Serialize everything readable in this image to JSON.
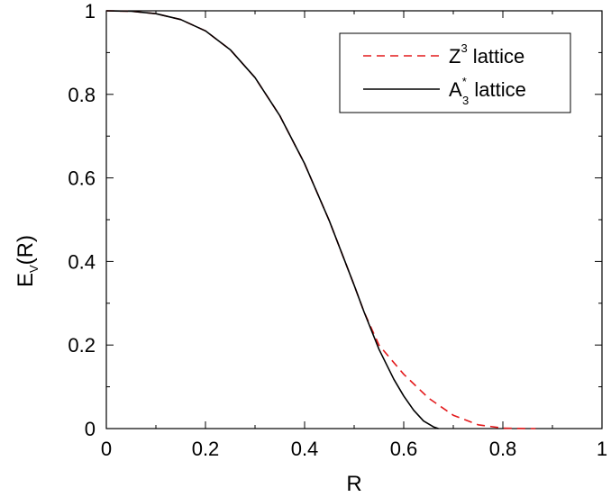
{
  "chart_data": {
    "type": "line",
    "title": "",
    "xlabel": "R",
    "ylabel": {
      "main": "E",
      "sub": "V",
      "suffix": "(R)"
    },
    "xlim": [
      0,
      1
    ],
    "ylim": [
      0,
      1
    ],
    "x_ticks": [
      0,
      0.2,
      0.4,
      0.6,
      0.8,
      1
    ],
    "y_ticks": [
      0,
      0.2,
      0.4,
      0.6,
      0.8,
      1
    ],
    "x_tick_labels": [
      "0",
      "0.2",
      "0.4",
      "0.6",
      "0.8",
      "1"
    ],
    "y_tick_labels": [
      "0",
      "0.2",
      "0.4",
      "0.6",
      "0.8",
      "1"
    ],
    "grid": false,
    "legend_position": "top-right",
    "series": [
      {
        "name": "Z3 lattice",
        "legend": {
          "base": "Z",
          "sup": "3",
          "sub": "",
          "suffix": " lattice"
        },
        "color": "#e31a1c",
        "style": "dashed",
        "x": [
          0,
          0.05,
          0.1,
          0.15,
          0.2,
          0.25,
          0.3,
          0.35,
          0.4,
          0.45,
          0.5,
          0.52,
          0.55,
          0.6,
          0.65,
          0.7,
          0.75,
          0.8,
          0.85,
          0.866
        ],
        "y": [
          1.0,
          0.999,
          0.993,
          0.979,
          0.952,
          0.907,
          0.84,
          0.749,
          0.634,
          0.497,
          0.343,
          0.279,
          0.2,
          0.13,
          0.073,
          0.032,
          0.009,
          0.001,
          0.0,
          0.0
        ]
      },
      {
        "name": "A3* lattice",
        "legend": {
          "base": "A",
          "sup": "*",
          "sub": "3",
          "suffix": " lattice"
        },
        "color": "#000000",
        "style": "solid",
        "x": [
          0,
          0.05,
          0.1,
          0.15,
          0.2,
          0.25,
          0.3,
          0.35,
          0.4,
          0.45,
          0.5,
          0.52,
          0.55,
          0.58,
          0.6,
          0.62,
          0.64,
          0.66,
          0.67
        ],
        "y": [
          1.0,
          0.999,
          0.993,
          0.979,
          0.952,
          0.907,
          0.84,
          0.749,
          0.634,
          0.497,
          0.343,
          0.279,
          0.19,
          0.118,
          0.078,
          0.044,
          0.018,
          0.004,
          0.0
        ]
      }
    ]
  }
}
